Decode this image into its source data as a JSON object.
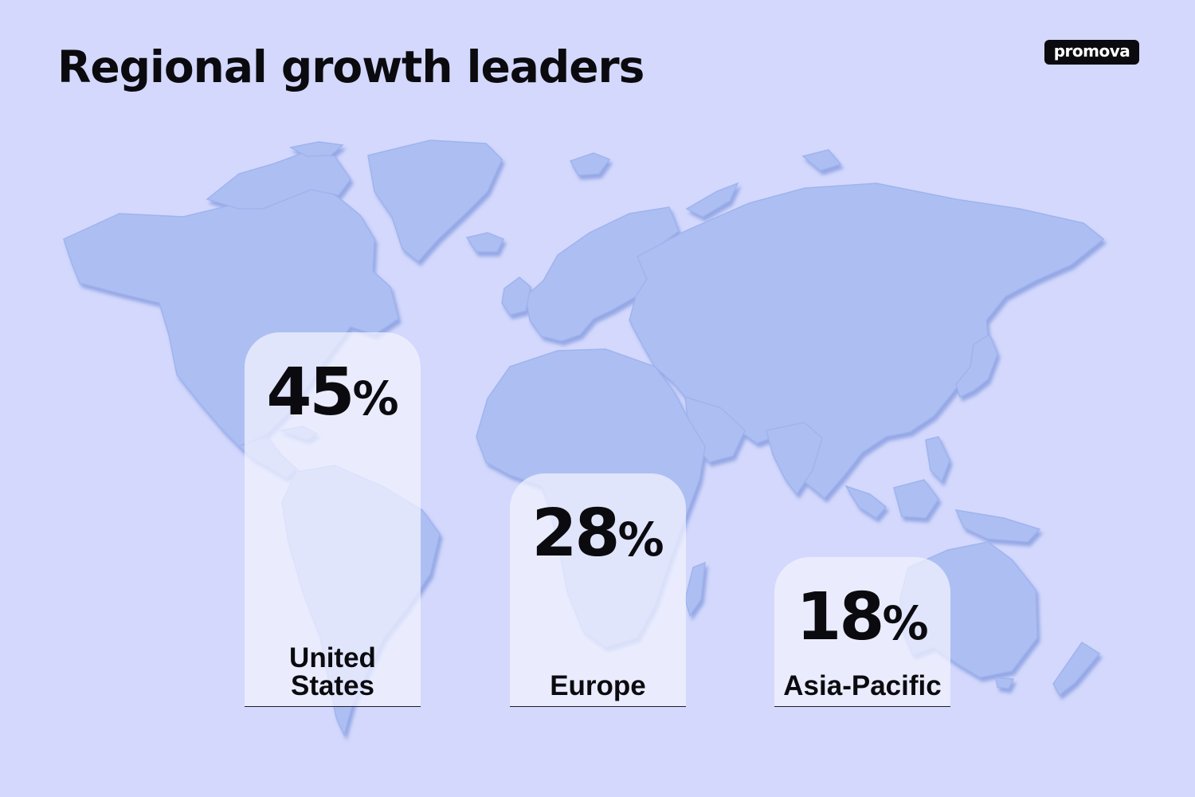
{
  "header": {
    "title": "Regional growth leaders",
    "brand": "promova"
  },
  "colors": {
    "background": "#d3d8fc",
    "map": "#a9bcf0",
    "bar_fill": "#eef0fe",
    "text": "#0b0b0f",
    "logo_bg": "#0b0b0f",
    "logo_text": "#ffffff"
  },
  "chart_data": {
    "type": "bar",
    "title": "Regional growth leaders",
    "categories": [
      "United States",
      "Europe",
      "Asia-Pacific"
    ],
    "values": [
      45,
      28,
      18
    ],
    "unit": "%",
    "value_labels": [
      "45",
      "28",
      "18"
    ],
    "category_labels": [
      [
        "United",
        "States"
      ],
      [
        "Europe"
      ],
      [
        "Asia-Pacific"
      ]
    ],
    "background_illustration": "world-map",
    "grid": false,
    "axes": false
  }
}
